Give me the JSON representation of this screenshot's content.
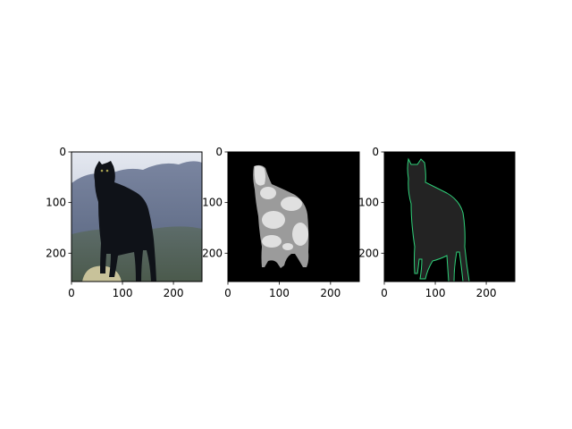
{
  "chart_data": [
    {
      "type": "image",
      "panel": "photo",
      "subject": "black panther standing on rock",
      "xlim": [
        0,
        256
      ],
      "ylim": [
        256,
        0
      ],
      "xticks": [
        0,
        100,
        200
      ],
      "yticks": [
        0,
        100,
        200
      ],
      "xlabel": "",
      "ylabel": "",
      "title": ""
    },
    {
      "type": "image",
      "panel": "segmentation-mask",
      "subject": "grayscale part mask of panther on black background",
      "xlim": [
        0,
        256
      ],
      "ylim": [
        256,
        0
      ],
      "xticks": [
        0,
        100,
        200
      ],
      "yticks": [
        0,
        100,
        200
      ],
      "xlabel": "",
      "ylabel": "",
      "title": ""
    },
    {
      "type": "image",
      "panel": "contour-overlay",
      "subject": "dark gray silhouette with green contour on black background",
      "xlim": [
        0,
        256
      ],
      "ylim": [
        256,
        0
      ],
      "xticks": [
        0,
        100,
        200
      ],
      "yticks": [
        0,
        100,
        200
      ],
      "xlabel": "",
      "ylabel": "",
      "title": ""
    }
  ],
  "colors": {
    "background": "#ffffff",
    "mask_background": "#000000",
    "contour": "#2fd27a",
    "silhouette": "#232323",
    "sky_top": "#dfe4ee",
    "hills": "#6c7896",
    "grass": "#59685a",
    "panther": "#0f1218"
  }
}
